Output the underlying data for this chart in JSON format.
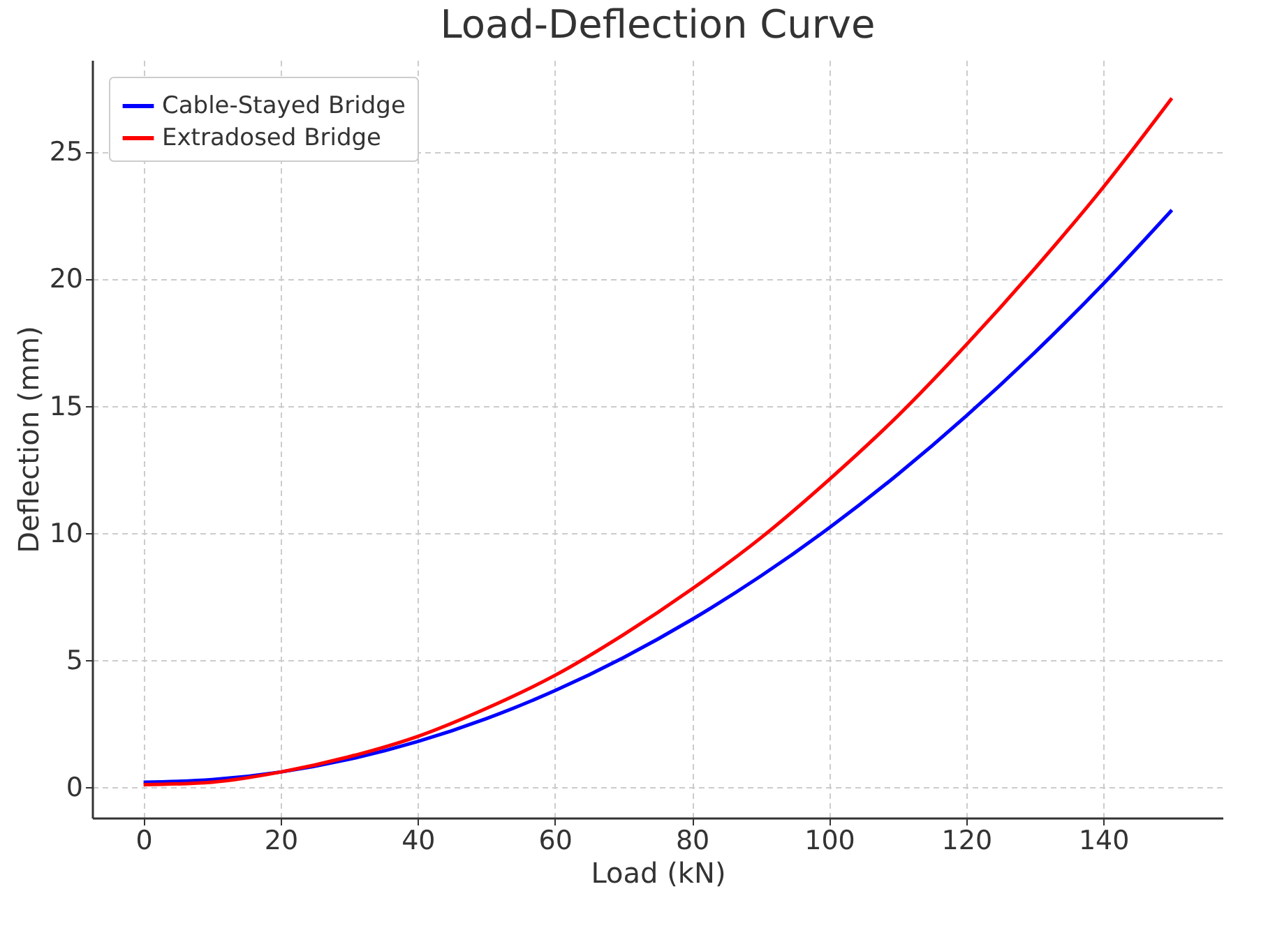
{
  "chart_data": {
    "type": "line",
    "title": "Load-Deflection Curve",
    "xlabel": "Load (kN)",
    "ylabel": "Deflection (mm)",
    "x": [
      0,
      10,
      20,
      30,
      40,
      50,
      60,
      70,
      80,
      90,
      100,
      110,
      120,
      130,
      140,
      150
    ],
    "series": [
      {
        "name": "Cable-Stayed Bridge",
        "color": "#0000ff",
        "values": [
          0.2,
          0.3,
          0.6,
          1.1,
          1.8,
          2.7,
          3.8,
          5.1,
          6.6,
          8.3,
          10.2,
          12.3,
          14.6,
          17.1,
          19.8,
          22.7
        ]
      },
      {
        "name": "Extradosed Bridge",
        "color": "#ff0000",
        "values": [
          0.1,
          0.2,
          0.6,
          1.2,
          2.0,
          3.1,
          4.4,
          6.0,
          7.8,
          9.8,
          12.1,
          14.6,
          17.4,
          20.4,
          23.6,
          27.1
        ]
      }
    ],
    "xlim": [
      -7.5,
      157.5
    ],
    "xticks": [
      0,
      20,
      40,
      60,
      80,
      100,
      120,
      140
    ],
    "ylim": [
      -1.2,
      28.6
    ],
    "yticks": [
      0,
      5,
      10,
      15,
      20,
      25
    ],
    "grid": true,
    "legend": "top left",
    "marker": "none",
    "line_style": "solid"
  }
}
